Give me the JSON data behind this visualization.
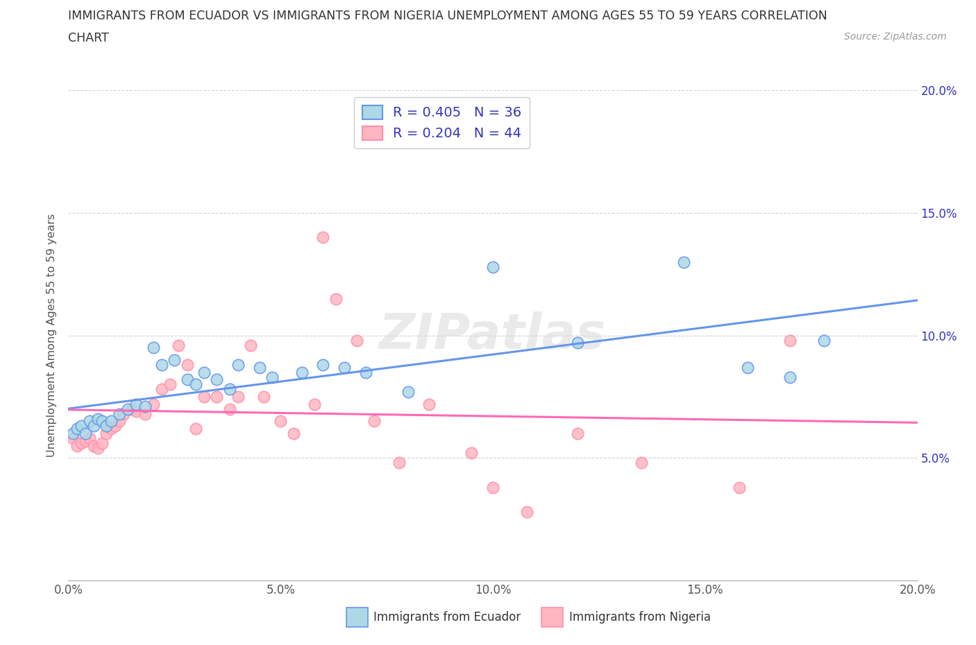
{
  "title_line1": "IMMIGRANTS FROM ECUADOR VS IMMIGRANTS FROM NIGERIA UNEMPLOYMENT AMONG AGES 55 TO 59 YEARS CORRELATION",
  "title_line2": "CHART",
  "source_text": "Source: ZipAtlas.com",
  "ylabel": "Unemployment Among Ages 55 to 59 years",
  "xlim": [
    0.0,
    0.2
  ],
  "ylim": [
    0.0,
    0.2
  ],
  "xtick_vals": [
    0.0,
    0.05,
    0.1,
    0.15,
    0.2
  ],
  "xtick_labels": [
    "0.0%",
    "5.0%",
    "10.0%",
    "15.0%",
    "20.0%"
  ],
  "ytick_vals": [
    0.05,
    0.1,
    0.15,
    0.2
  ],
  "ytick_labels": [
    "5.0%",
    "10.0%",
    "15.0%",
    "20.0%"
  ],
  "ecuador_color": "#ADD8E6",
  "ecuador_edge": "#6495ED",
  "nigeria_color": "#FFB6C1",
  "nigeria_edge": "#FF8FAB",
  "trend_ecuador_color": "#6495ED",
  "trend_nigeria_color": "#FF69B4",
  "R_ecuador": 0.405,
  "N_ecuador": 36,
  "R_nigeria": 0.204,
  "N_nigeria": 44,
  "ecuador_x": [
    0.001,
    0.002,
    0.003,
    0.004,
    0.005,
    0.006,
    0.007,
    0.008,
    0.009,
    0.01,
    0.012,
    0.014,
    0.016,
    0.018,
    0.02,
    0.022,
    0.025,
    0.028,
    0.03,
    0.032,
    0.035,
    0.038,
    0.04,
    0.045,
    0.048,
    0.055,
    0.06,
    0.065,
    0.07,
    0.08,
    0.1,
    0.12,
    0.145,
    0.16,
    0.17,
    0.178
  ],
  "ecuador_y": [
    0.06,
    0.062,
    0.063,
    0.06,
    0.065,
    0.063,
    0.066,
    0.065,
    0.063,
    0.065,
    0.068,
    0.07,
    0.072,
    0.071,
    0.095,
    0.088,
    0.09,
    0.082,
    0.08,
    0.085,
    0.082,
    0.078,
    0.088,
    0.087,
    0.083,
    0.085,
    0.088,
    0.087,
    0.085,
    0.077,
    0.128,
    0.097,
    0.13,
    0.087,
    0.083,
    0.098
  ],
  "nigeria_x": [
    0.001,
    0.002,
    0.003,
    0.004,
    0.005,
    0.006,
    0.007,
    0.008,
    0.009,
    0.01,
    0.011,
    0.012,
    0.013,
    0.015,
    0.016,
    0.018,
    0.02,
    0.022,
    0.024,
    0.026,
    0.028,
    0.03,
    0.032,
    0.035,
    0.038,
    0.04,
    0.043,
    0.046,
    0.05,
    0.053,
    0.058,
    0.06,
    0.063,
    0.068,
    0.072,
    0.078,
    0.085,
    0.095,
    0.1,
    0.108,
    0.12,
    0.135,
    0.158,
    0.17
  ],
  "nigeria_y": [
    0.058,
    0.055,
    0.056,
    0.057,
    0.058,
    0.055,
    0.054,
    0.056,
    0.06,
    0.062,
    0.063,
    0.065,
    0.068,
    0.07,
    0.069,
    0.068,
    0.072,
    0.078,
    0.08,
    0.096,
    0.088,
    0.062,
    0.075,
    0.075,
    0.07,
    0.075,
    0.096,
    0.075,
    0.065,
    0.06,
    0.072,
    0.14,
    0.115,
    0.098,
    0.065,
    0.048,
    0.072,
    0.052,
    0.038,
    0.028,
    0.06,
    0.048,
    0.038,
    0.098
  ],
  "watermark": "ZIPatlas",
  "legend_label_ecuador": "Immigrants from Ecuador",
  "legend_label_nigeria": "Immigrants from Nigeria",
  "background_color": "#FFFFFF",
  "grid_color": "#CCCCCC",
  "legend_text_color": "#3333BB"
}
